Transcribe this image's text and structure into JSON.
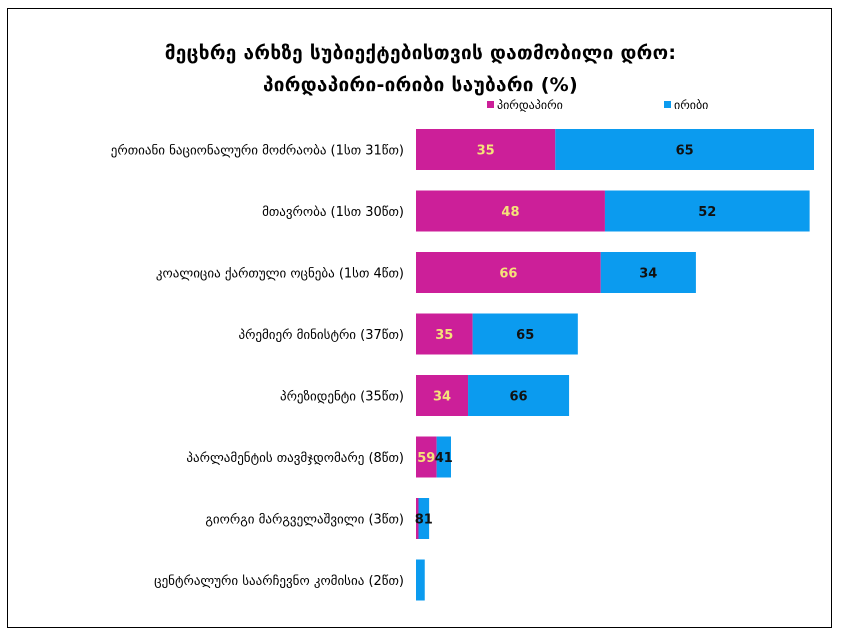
{
  "chart_data": {
    "type": "bar",
    "orientation": "horizontal",
    "stacked": true,
    "title": "მეცხრე არხზე სუბიექტებისთვის დათმობილი დრო:",
    "subtitle": "პირდაპირი-ირიბი საუბარი (%)",
    "categories": [
      "ერთიანი ნაციონალური მოძრაობა (1სთ 31წთ)",
      "მთავრობა (1სთ 30წთ)",
      "კოალიცია ქართული ოცნება (1სთ 4წთ)",
      "პრემიერ მინისტრი (37წთ)",
      "პრეზიდენტი (35წთ)",
      "პარლამენტის თავმჯდომარე (8წთ)",
      "გიორგი მარგველაშვილი (3წთ)",
      "ცენტრალური საარჩევნო კომისია (2წთ)"
    ],
    "durations_min": [
      91,
      90,
      64,
      37,
      35,
      8,
      3,
      2
    ],
    "series": [
      {
        "name": "პირდაპირი",
        "color": "#CC1F99",
        "label_color": "#F5E27A",
        "values": [
          35,
          48,
          66,
          35,
          34,
          59,
          19,
          0
        ],
        "labels": [
          "35",
          "48",
          "66",
          "35",
          "34",
          "59",
          "",
          ""
        ]
      },
      {
        "name": "ირიბი",
        "color": "#0B9BEF",
        "label_color": "#111111",
        "values": [
          65,
          52,
          34,
          65,
          66,
          41,
          81,
          100
        ],
        "labels": [
          "65",
          "52",
          "34",
          "65",
          "66",
          "41",
          "81",
          ""
        ]
      }
    ]
  }
}
